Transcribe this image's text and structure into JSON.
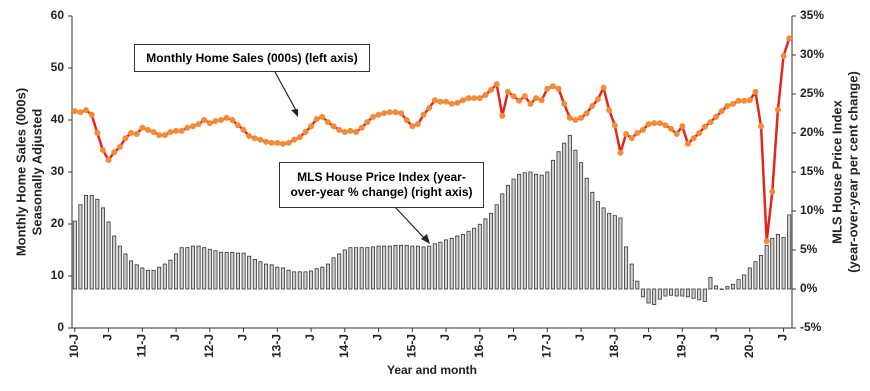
{
  "chart_data": {
    "type": "combo",
    "annotations": [
      "Monthly Home Sales (000s) (left axis)",
      "MLS House Price Index (year-over-year % change) (right axis)"
    ],
    "ylabel": [
      "Monthly Home Sales (000s)",
      "Seasonally Adjusted"
    ],
    "y2label": [
      "MLS House Price Index",
      "(year-over-year per cent change)"
    ],
    "xlabel": "Year and month",
    "categories": [
      "10-J",
      null,
      null,
      null,
      null,
      null,
      "J",
      null,
      null,
      null,
      null,
      null,
      "11-J",
      null,
      null,
      null,
      null,
      null,
      "J",
      null,
      null,
      null,
      null,
      null,
      "12-J",
      null,
      null,
      null,
      null,
      null,
      "J",
      null,
      null,
      null,
      null,
      null,
      "13-J",
      null,
      null,
      null,
      null,
      null,
      "J",
      null,
      null,
      null,
      null,
      null,
      "14-J",
      null,
      null,
      null,
      null,
      null,
      "J",
      null,
      null,
      null,
      null,
      null,
      "15-J",
      null,
      null,
      null,
      null,
      null,
      "J",
      null,
      null,
      null,
      null,
      null,
      "16-J",
      null,
      null,
      null,
      null,
      null,
      "J",
      null,
      null,
      null,
      null,
      null,
      "17-J",
      null,
      null,
      null,
      null,
      null,
      "J",
      null,
      null,
      null,
      null,
      null,
      "18-J",
      null,
      null,
      null,
      null,
      null,
      "J",
      null,
      null,
      null,
      null,
      null,
      "19-J",
      null,
      null,
      null,
      null,
      null,
      "J",
      null,
      null,
      null,
      null,
      null,
      "20-J",
      null,
      null,
      null,
      null,
      null,
      "J",
      null
    ],
    "ylim": [
      0,
      60
    ],
    "yticks": [
      0,
      10,
      20,
      30,
      40,
      50,
      60
    ],
    "y2lim": [
      -5,
      35
    ],
    "y2ticks": [
      {
        "value": -5,
        "label": "-5%"
      },
      {
        "value": 0,
        "label": "0%"
      },
      {
        "value": 5,
        "label": "5%"
      },
      {
        "value": 10,
        "label": "10%"
      },
      {
        "value": 15,
        "label": "15%"
      },
      {
        "value": 20,
        "label": "20%"
      },
      {
        "value": 25,
        "label": "25%"
      },
      {
        "value": 30,
        "label": "30%"
      },
      {
        "value": 35,
        "label": "35%"
      }
    ],
    "series": [
      {
        "type": "bar",
        "axis": "y2",
        "color": "#d0d0d0",
        "values": [
          8.7,
          10.8,
          12,
          12,
          11.5,
          10.4,
          8.6,
          6.8,
          5.5,
          4.5,
          3.6,
          3.1,
          2.7,
          2.4,
          2.4,
          2.8,
          3.2,
          3.7,
          4.5,
          5.3,
          5.3,
          5.5,
          5.5,
          5.3,
          5.1,
          4.9,
          4.7,
          4.7,
          4.7,
          4.6,
          4.6,
          4.2,
          3.8,
          3.5,
          3.2,
          3.1,
          2.8,
          2.7,
          2.4,
          2.2,
          2.2,
          2.2,
          2.3,
          2.6,
          2.8,
          3.2,
          4,
          4.5,
          5,
          5.3,
          5.3,
          5.3,
          5.3,
          5.4,
          5.5,
          5.5,
          5.5,
          5.6,
          5.6,
          5.6,
          5.5,
          5.5,
          5.4,
          5.5,
          5.8,
          6,
          6.3,
          6.5,
          6.8,
          7,
          7.4,
          7.8,
          8.3,
          9,
          9.7,
          10.8,
          12.2,
          13.3,
          14.1,
          14.7,
          14.9,
          15,
          14.7,
          14.6,
          15,
          16.5,
          17.6,
          18.7,
          19.7,
          17.8,
          16.2,
          14.2,
          12.4,
          11.2,
          10.4,
          9.7,
          9.4,
          9.1,
          5.4,
          3.2,
          1,
          -1,
          -1.8,
          -2,
          -1.3,
          -0.9,
          -0.8,
          -0.9,
          -0.9,
          -1,
          -1.2,
          -1.4,
          -1.6,
          1.5,
          0.4,
          0,
          0.3,
          0.6,
          1.2,
          1.8,
          2.7,
          3.5,
          4.3,
          5.6,
          6.5,
          7,
          6.6,
          9.5
        ]
      },
      {
        "type": "line",
        "axis": "y",
        "color": "#e8231c",
        "marker_color": "#f28c38",
        "values": [
          41.7,
          41.5,
          41.9,
          41,
          37.5,
          34.2,
          32.3,
          33.8,
          34.8,
          36.5,
          37.5,
          37.3,
          38.5,
          38.1,
          37.7,
          37.1,
          37.1,
          37.7,
          37.9,
          37.9,
          38.5,
          38.8,
          39.2,
          40,
          39.4,
          39.8,
          40,
          40.4,
          40,
          39,
          38.1,
          36.9,
          36.5,
          36.2,
          35.8,
          35.6,
          35.6,
          35.4,
          35.6,
          36.2,
          36.7,
          37.7,
          38.8,
          40.2,
          40.6,
          39.6,
          38.8,
          38.1,
          37.7,
          37.9,
          37.7,
          38.5,
          39.6,
          40.6,
          41,
          41.3,
          41.5,
          41.5,
          41.3,
          40,
          38.8,
          39.2,
          41,
          42.3,
          43.8,
          43.5,
          43.5,
          43.1,
          43.3,
          43.8,
          44.2,
          44.2,
          44.2,
          44.8,
          45.8,
          46.9,
          40.8,
          45.4,
          44.6,
          43.7,
          44.6,
          43.1,
          44.2,
          43.8,
          46,
          46.5,
          46,
          43.1,
          40.4,
          40,
          40.4,
          41.3,
          42.7,
          44,
          46.2,
          41.9,
          39,
          33.7,
          37.3,
          36.5,
          37.5,
          38.1,
          39.2,
          39.4,
          39.4,
          39,
          38.3,
          37.3,
          38.8,
          35.4,
          36.5,
          37.5,
          38.7,
          39.6,
          40.6,
          41.7,
          42.7,
          43.1,
          43.7,
          43.7,
          43.8,
          45.4,
          38.8,
          16.7,
          26.2,
          42,
          52.3,
          55.7
        ]
      }
    ]
  }
}
